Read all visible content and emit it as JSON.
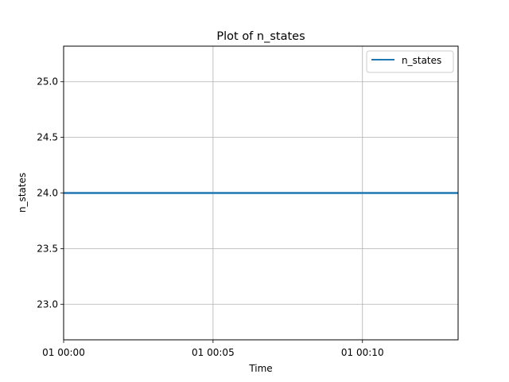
{
  "chart_data": {
    "type": "line",
    "title": "Plot of n_states",
    "xlabel": "Time",
    "ylabel": "n_states",
    "x_domain_minutes": [
      0,
      13.2
    ],
    "x_ticks": [
      {
        "minutes": 0,
        "label": "01 00:00"
      },
      {
        "minutes": 5,
        "label": "01 00:05"
      },
      {
        "minutes": 10,
        "label": "01 00:10"
      }
    ],
    "ylim": [
      22.68,
      25.32
    ],
    "y_ticks": [
      {
        "value": 23.0,
        "label": "23.0"
      },
      {
        "value": 23.5,
        "label": "23.5"
      },
      {
        "value": 24.0,
        "label": "24.0"
      },
      {
        "value": 24.5,
        "label": "24.5"
      },
      {
        "value": 25.0,
        "label": "25.0"
      }
    ],
    "grid": true,
    "legend_position": "top-right",
    "series": [
      {
        "name": "n_states",
        "color": "#1f77b4",
        "x_minutes": [
          0,
          13.2
        ],
        "values": [
          24,
          24
        ]
      }
    ]
  }
}
